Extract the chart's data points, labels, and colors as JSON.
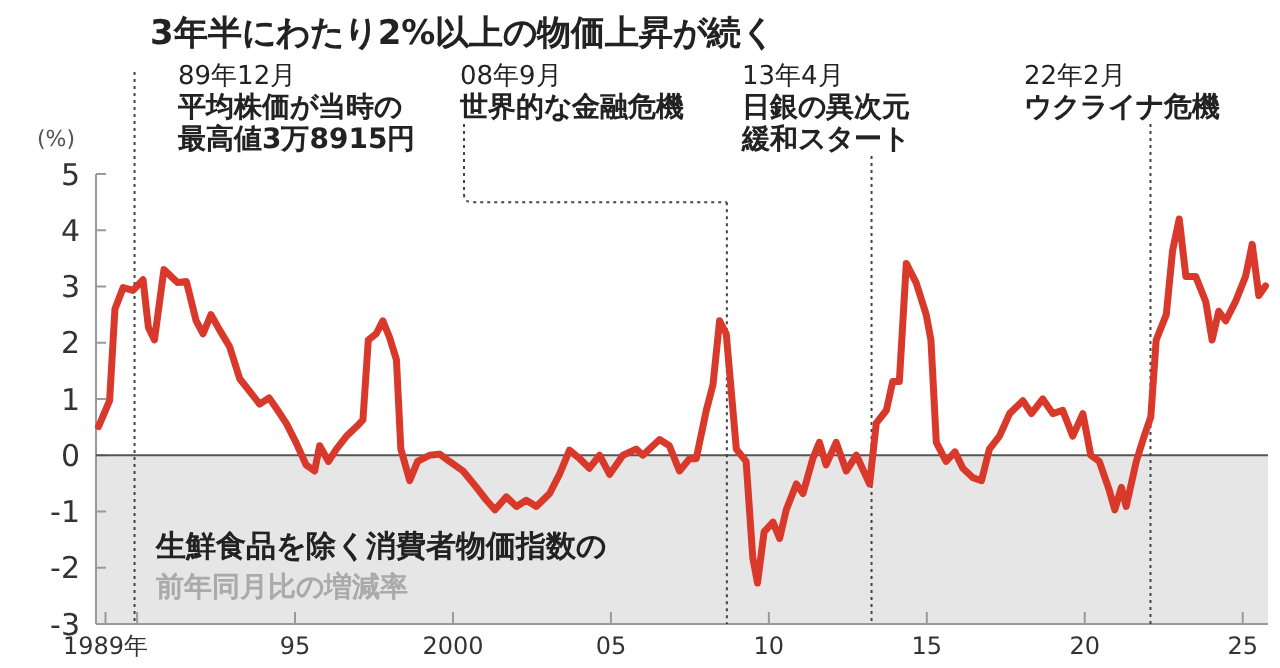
{
  "chart_data": {
    "type": "line",
    "title": "3年半にわたり2%以上の物価上昇が続く",
    "ylabel": "(%)",
    "xlim": [
      1988.7,
      2025.8
    ],
    "ylim": [
      -3,
      5
    ],
    "xticks": [
      {
        "value": 1989,
        "label": "1989年"
      },
      {
        "value": 1990,
        "label": null
      },
      {
        "value": 1995,
        "label": "95"
      },
      2000,
      {
        "value": 2005,
        "label": "05"
      },
      {
        "value": 2010,
        "label": "10"
      },
      {
        "value": 2015,
        "label": "15"
      },
      {
        "value": 2020,
        "label": "20"
      },
      {
        "value": 2025,
        "label": "25"
      }
    ],
    "yticks": [
      -3,
      -2,
      -1,
      0,
      1,
      2,
      3,
      4,
      5
    ],
    "x": [
      1988.78,
      1989.13,
      1989.3,
      1989.56,
      1989.87,
      1990.19,
      1990.36,
      1990.55,
      1990.85,
      1991.28,
      1991.56,
      1991.87,
      1992.09,
      1992.34,
      1992.62,
      1992.93,
      1993.25,
      1993.56,
      1993.88,
      1994.18,
      1994.45,
      1994.72,
      1995.03,
      1995.35,
      1995.62,
      1995.78,
      1996.06,
      1996.31,
      1996.63,
      1996.95,
      1997.15,
      1997.32,
      1997.57,
      1997.78,
      1997.99,
      1998.21,
      1998.35,
      1998.63,
      1998.88,
      1999.26,
      1999.58,
      1999.89,
      2000.32,
      2000.74,
      2001.06,
      2001.33,
      2001.69,
      2002.01,
      2002.32,
      2002.64,
      2003.06,
      2003.37,
      2003.69,
      2004.01,
      2004.32,
      2004.64,
      2004.96,
      2005.38,
      2005.8,
      2006.01,
      2006.54,
      2006.85,
      2007.17,
      2007.49,
      2007.7,
      2008.02,
      2008.23,
      2008.44,
      2008.65,
      2008.97,
      2009.28,
      2009.49,
      2009.64,
      2009.85,
      2010.13,
      2010.34,
      2010.55,
      2010.87,
      2011.08,
      2011.39,
      2011.6,
      2011.81,
      2012.13,
      2012.45,
      2012.77,
      2013.19,
      2013.4,
      2013.72,
      2013.92,
      2014.13,
      2014.35,
      2014.66,
      2014.98,
      2015.13,
      2015.3,
      2015.61,
      2015.89,
      2016.14,
      2016.46,
      2016.73,
      2016.98,
      2017.3,
      2017.62,
      2018.04,
      2018.31,
      2018.67,
      2018.99,
      2019.3,
      2019.62,
      2019.94,
      2020.19,
      2020.46,
      2020.78,
      2020.95,
      2021.16,
      2021.31,
      2021.63,
      2021.88,
      2022.09,
      2022.26,
      2022.58,
      2022.78,
      2022.99,
      2023.2,
      2023.51,
      2023.83,
      2024.03,
      2024.24,
      2024.46,
      2024.77,
      2025.09,
      2025.3,
      2025.51,
      2025.72
    ],
    "series": [
      {
        "color": "#d9392b",
        "values": [
          0.51,
          0.97,
          2.6,
          2.98,
          2.93,
          3.12,
          2.27,
          2.05,
          3.3,
          3.07,
          3.09,
          2.39,
          2.16,
          2.5,
          2.22,
          1.93,
          1.36,
          1.14,
          0.91,
          1.02,
          0.8,
          0.57,
          0.23,
          -0.17,
          -0.28,
          0.17,
          -0.11,
          0.11,
          0.34,
          0.51,
          0.63,
          2.05,
          2.16,
          2.39,
          2.1,
          1.7,
          0.11,
          -0.45,
          -0.11,
          0,
          0.02,
          -0.11,
          -0.28,
          -0.57,
          -0.8,
          -0.97,
          -0.74,
          -0.91,
          -0.8,
          -0.91,
          -0.68,
          -0.34,
          0.09,
          -0.06,
          -0.23,
          0,
          -0.34,
          0,
          0.11,
          0,
          0.28,
          0.17,
          -0.28,
          -0.06,
          -0.06,
          0.8,
          1.25,
          2.39,
          2.16,
          0.11,
          -0.11,
          -1.82,
          -2.27,
          -1.36,
          -1.19,
          -1.48,
          -0.97,
          -0.51,
          -0.68,
          -0.06,
          0.23,
          -0.17,
          0.23,
          -0.28,
          0,
          -0.51,
          0.57,
          0.8,
          1.31,
          1.31,
          3.41,
          3.07,
          2.5,
          2.05,
          0.23,
          -0.11,
          0.06,
          -0.23,
          -0.4,
          -0.45,
          0.11,
          0.34,
          0.74,
          0.97,
          0.74,
          1.0,
          0.74,
          0.8,
          0.34,
          0.74,
          0,
          -0.11,
          -0.63,
          -0.97,
          -0.57,
          -0.91,
          -0.11,
          0.34,
          0.68,
          2.05,
          2.5,
          3.64,
          4.2,
          3.18,
          3.18,
          2.73,
          2.05,
          2.56,
          2.39,
          2.73,
          3.18,
          3.75,
          2.84,
          3.01
        ]
      }
    ],
    "ref_lines": [
      {
        "axis": "x",
        "value": 1989.92,
        "label": "89年12月",
        "line_style": "dotted"
      },
      {
        "axis": "x",
        "value": 2008.67,
        "label": "08年9月",
        "line_style": "dotted"
      },
      {
        "axis": "x",
        "value": 2013.25,
        "label": "13年4月",
        "line_style": "dotted"
      },
      {
        "axis": "x",
        "value": 2022.08,
        "label": "22年2月",
        "line_style": "dotted"
      }
    ],
    "bands": [
      {
        "axis": "y",
        "from": 0,
        "to": -3,
        "color": "#e6e6e6"
      }
    ],
    "annotations": [
      "平均株価が当時の最高値3万8915円",
      {
        "text": "世界的な金融危機",
        "x": 2008.67,
        "y": 4.5
      },
      "日銀の異次元緩和スタート",
      "ウクライナ危機",
      "生鮮食品を除く消費者物価指数の",
      "前年同月比の増減率"
    ]
  }
}
